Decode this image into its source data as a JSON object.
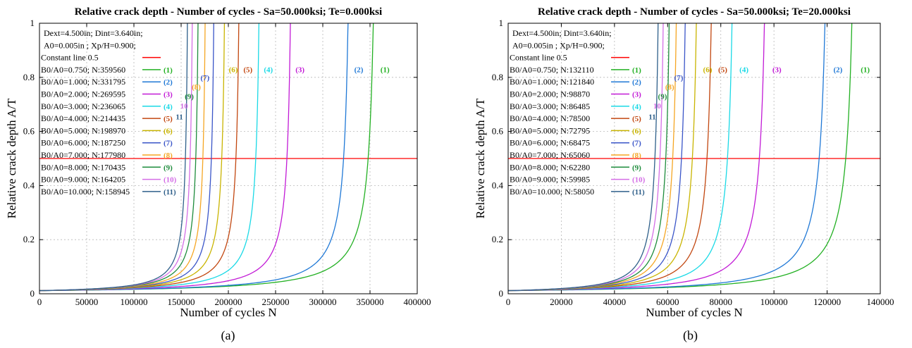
{
  "chart_data": [
    {
      "type": "line",
      "title": "Relative crack depth - Number of cycles - Sa=50.000ksi; Te=0.000ksi",
      "xlabel": "Number of cycles N",
      "ylabel": "Relative crack depth A/T",
      "xlim": [
        0,
        400000
      ],
      "ylim": [
        0,
        1
      ],
      "x_ticks": [
        "0",
        "50000",
        "100000",
        "150000",
        "200000",
        "250000",
        "300000",
        "350000",
        "400000"
      ],
      "y_ticks": [
        "0",
        "0.2",
        "0.4",
        "0.6",
        "0.8",
        "1"
      ],
      "grid": true,
      "legend_position": "top-left",
      "legend_header": [
        "Dext=4.500in; Dint=3.640in;",
        "A0=0.005in ; Xp/H=0.900;"
      ],
      "constant_line": {
        "name": "Constant line 0.5",
        "y": 0.5,
        "color": "#ff0000"
      },
      "series": [
        {
          "name": "B0/A0=0.750; N:359560",
          "tag": "(1)",
          "color": "#22b022",
          "n_final": 359560,
          "n_at_half": 348000
        },
        {
          "name": "B0/A0=1.000; N:331795",
          "tag": "(2)",
          "color": "#1f78d6",
          "n_final": 331795,
          "n_at_half": 322000
        },
        {
          "name": "B0/A0=2.000; N:269595",
          "tag": "(3)",
          "color": "#c21ad6",
          "n_final": 269595,
          "n_at_half": 262000
        },
        {
          "name": "B0/A0=3.000; N:236065",
          "tag": "(4)",
          "color": "#19d9e6",
          "n_final": 236065,
          "n_at_half": 229000
        },
        {
          "name": "B0/A0=4.000; N:214435",
          "tag": "(5)",
          "color": "#c24710",
          "n_final": 214435,
          "n_at_half": 208000
        },
        {
          "name": "B0/A0=5.000; N:198970",
          "tag": "(6)",
          "color": "#c9b400",
          "n_final": 198970,
          "n_at_half": 193000
        },
        {
          "name": "B0/A0=6.000; N:187250",
          "tag": "(7)",
          "color": "#3a55c8",
          "n_final": 187250,
          "n_at_half": 182000
        },
        {
          "name": "B0/A0=7.000; N:177980",
          "tag": "(8)",
          "color": "#f5a623",
          "n_final": 177980,
          "n_at_half": 173000
        },
        {
          "name": "B0/A0=8.000; N:170435",
          "tag": "(9)",
          "color": "#1e8c3c",
          "n_final": 170435,
          "n_at_half": 165500
        },
        {
          "name": "B0/A0=9.000; N:164205",
          "tag": "(10)",
          "color": "#d46ee6",
          "n_final": 164205,
          "n_at_half": 159500
        },
        {
          "name": "B0/A0=10.000; N:158945",
          "tag": "(11)",
          "color": "#2e5f8a",
          "n_final": 158945,
          "n_at_half": 154500
        }
      ],
      "curve_labels": [
        "(1)",
        "(2)",
        "(3)",
        "(4)",
        "(5)",
        "(6)",
        "(7)",
        "(8)",
        "(9)",
        "10",
        "11"
      ]
    },
    {
      "type": "line",
      "title": "Relative crack depth - Number of cycles - Sa=50.000ksi; Te=20.000ksi",
      "xlabel": "Number of cycles N",
      "ylabel": "Relative crack depth A/T",
      "xlim": [
        0,
        140000
      ],
      "ylim": [
        0,
        1
      ],
      "x_ticks": [
        "0",
        "20000",
        "40000",
        "60000",
        "80000",
        "100000",
        "120000",
        "140000"
      ],
      "y_ticks": [
        "0",
        "0.2",
        "0.4",
        "0.6",
        "0.8",
        "1"
      ],
      "grid": true,
      "legend_position": "top-left",
      "legend_header": [
        "Dext=4.500in; Dint=3.640in;",
        "A0=0.005in ; Xp/H=0.900;"
      ],
      "constant_line": {
        "name": "Constant line 0.5",
        "y": 0.5,
        "color": "#ff0000"
      },
      "series": [
        {
          "name": "B0/A0=0.750; N:132110",
          "tag": "(1)",
          "color": "#22b022",
          "n_final": 132110,
          "n_at_half": 127000
        },
        {
          "name": "B0/A0=1.000; N:121840",
          "tag": "(2)",
          "color": "#1f78d6",
          "n_final": 121840,
          "n_at_half": 117000
        },
        {
          "name": "B0/A0=2.000; N:98870",
          "tag": "(3)",
          "color": "#c21ad6",
          "n_final": 98870,
          "n_at_half": 94500
        },
        {
          "name": "B0/A0=3.000; N:86485",
          "tag": "(4)",
          "color": "#19d9e6",
          "n_final": 86485,
          "n_at_half": 82500
        },
        {
          "name": "B0/A0=4.000; N:78500",
          "tag": "(5)",
          "color": "#c24710",
          "n_final": 78500,
          "n_at_half": 74800
        },
        {
          "name": "B0/A0=5.000; N:72795",
          "tag": "(6)",
          "color": "#c9b400",
          "n_final": 72795,
          "n_at_half": 69300
        },
        {
          "name": "B0/A0=6.000; N:68475",
          "tag": "(7)",
          "color": "#3a55c8",
          "n_final": 68475,
          "n_at_half": 65200
        },
        {
          "name": "B0/A0=7.000; N:65060",
          "tag": "(8)",
          "color": "#f5a623",
          "n_final": 65060,
          "n_at_half": 61900
        },
        {
          "name": "B0/A0=8.000; N:62280",
          "tag": "(9)",
          "color": "#1e8c3c",
          "n_final": 62280,
          "n_at_half": 59300
        },
        {
          "name": "B0/A0=9.000; N:59985",
          "tag": "(10)",
          "color": "#d46ee6",
          "n_final": 59985,
          "n_at_half": 57100
        },
        {
          "name": "B0/A0=10.000; N:58050",
          "tag": "(11)",
          "color": "#2e5f8a",
          "n_final": 58050,
          "n_at_half": 55200
        }
      ],
      "curve_labels": [
        "(1)",
        "(2)",
        "(3)",
        "(4)",
        "(5)",
        "(6)",
        "(7)",
        "(8)",
        "(9)",
        "10",
        "11"
      ]
    }
  ],
  "captions": [
    "(a)",
    "(b)"
  ]
}
